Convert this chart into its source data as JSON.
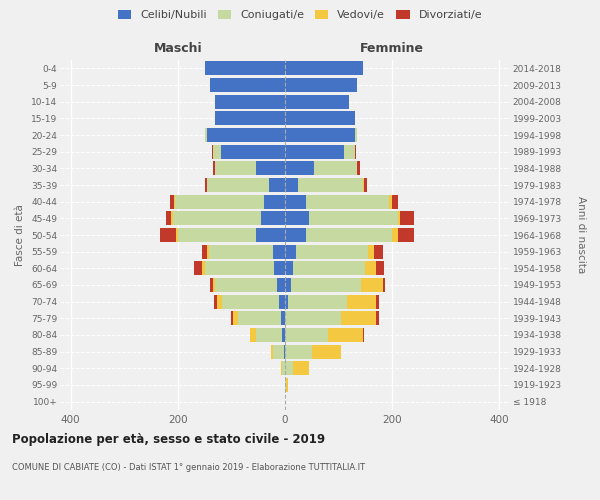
{
  "age_groups": [
    "100+",
    "95-99",
    "90-94",
    "85-89",
    "80-84",
    "75-79",
    "70-74",
    "65-69",
    "60-64",
    "55-59",
    "50-54",
    "45-49",
    "40-44",
    "35-39",
    "30-34",
    "25-29",
    "20-24",
    "15-19",
    "10-14",
    "5-9",
    "0-4"
  ],
  "birth_years": [
    "≤ 1918",
    "1919-1923",
    "1924-1928",
    "1929-1933",
    "1934-1938",
    "1939-1943",
    "1944-1948",
    "1949-1953",
    "1954-1958",
    "1959-1963",
    "1964-1968",
    "1969-1973",
    "1974-1978",
    "1979-1983",
    "1984-1988",
    "1989-1993",
    "1994-1998",
    "1999-2003",
    "2004-2008",
    "2009-2013",
    "2014-2018"
  ],
  "maschi": {
    "celibi": [
      0,
      0,
      0,
      2,
      5,
      8,
      12,
      15,
      20,
      22,
      55,
      45,
      40,
      30,
      55,
      120,
      145,
      130,
      130,
      140,
      150
    ],
    "coniugati": [
      0,
      0,
      5,
      20,
      50,
      80,
      105,
      115,
      130,
      120,
      145,
      165,
      165,
      115,
      75,
      15,
      5,
      0,
      0,
      0,
      0
    ],
    "vedovi": [
      0,
      0,
      3,
      5,
      10,
      10,
      10,
      5,
      5,
      3,
      3,
      3,
      2,
      0,
      0,
      0,
      0,
      0,
      0,
      0,
      0
    ],
    "divorziati": [
      0,
      0,
      0,
      0,
      0,
      3,
      5,
      5,
      15,
      10,
      30,
      10,
      8,
      5,
      5,
      2,
      0,
      0,
      0,
      0,
      0
    ]
  },
  "femmine": {
    "nubili": [
      0,
      0,
      0,
      0,
      0,
      0,
      5,
      12,
      15,
      20,
      40,
      45,
      40,
      25,
      55,
      110,
      130,
      130,
      120,
      135,
      145
    ],
    "coniugate": [
      0,
      2,
      15,
      50,
      80,
      105,
      110,
      130,
      135,
      135,
      160,
      165,
      155,
      120,
      80,
      20,
      5,
      0,
      0,
      0,
      0
    ],
    "vedove": [
      0,
      3,
      30,
      55,
      65,
      65,
      55,
      40,
      20,
      12,
      10,
      5,
      5,
      3,
      0,
      0,
      0,
      0,
      0,
      0,
      0
    ],
    "divorziate": [
      0,
      0,
      0,
      0,
      3,
      5,
      5,
      5,
      15,
      15,
      30,
      25,
      10,
      5,
      5,
      2,
      0,
      0,
      0,
      0,
      0
    ]
  },
  "colors": {
    "celibi": "#4472c4",
    "coniugati": "#c5d9a0",
    "vedovi": "#f5c842",
    "divorziati": "#c0392b"
  },
  "xlim": 420,
  "title": "Popolazione per età, sesso e stato civile - 2019",
  "subtitle": "COMUNE DI CABIATE (CO) - Dati ISTAT 1° gennaio 2019 - Elaborazione TUTTITALIA.IT",
  "ylabel_left": "Fasce di età",
  "ylabel_right": "Anni di nascita",
  "xlabel_maschi": "Maschi",
  "xlabel_femmine": "Femmine",
  "legend_labels": [
    "Celibi/Nubili",
    "Coniugati/e",
    "Vedovi/e",
    "Divorziati/e"
  ],
  "background_color": "#f0f0f0"
}
